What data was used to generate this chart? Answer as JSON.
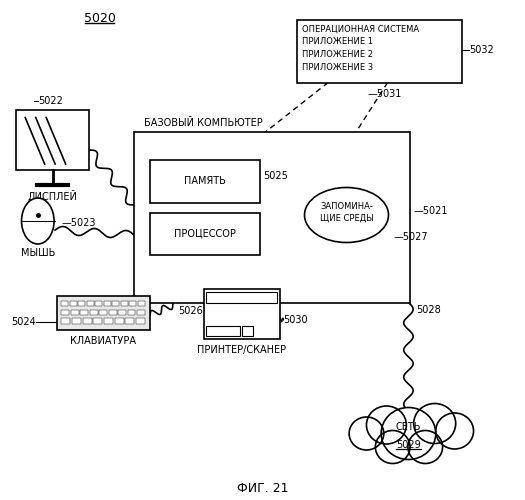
{
  "title": "ФИГ. 21",
  "main_label": "5020",
  "bg_color": "#ffffff",
  "text_color": "#000000",
  "os_text": "ОПЕРАЦИОННАЯ СИСТЕМА\nПРИЛОЖЕНИЕ 1\nПРИЛОЖЕНИЕ 2\nПРИЛОЖЕНИЕ 3",
  "base_computer_label": "БАЗОВЫЙ КОМПЬЮТЕР",
  "memory_label": "ПАМЯТЬ",
  "processor_label": "ПРОЦЕССОР",
  "storage_label": "ЗАПОМИНА-\nЩИЕ СРЕДЫ",
  "display_label": "ДИСПЛЕЙ",
  "mouse_label": "МЫШЬ",
  "keyboard_label": "КЛАВИАТУРА",
  "printer_label": "ПРИНТЕР/СКАНЕР",
  "network_label": "СЕТЬ",
  "network_num": "5029"
}
